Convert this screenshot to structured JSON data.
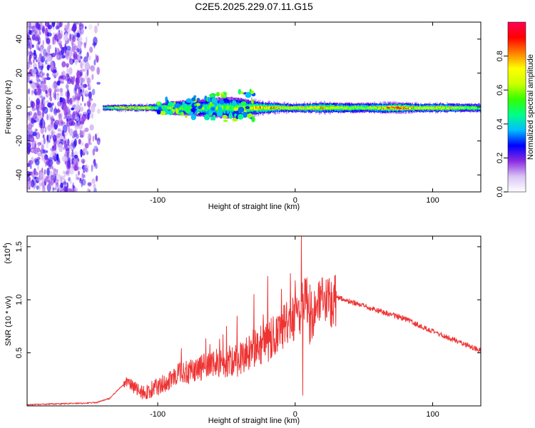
{
  "title": "C2E5.2025.229.07.11.G15",
  "chart_data": [
    {
      "type": "heatmap",
      "xlabel": "Height of straight line (km)",
      "ylabel": "Frequency (Hz)",
      "xlim": [
        -195,
        135
      ],
      "ylim": [
        -50,
        50
      ],
      "x_ticks": [
        -100,
        0,
        100
      ],
      "y_ticks": [
        -40,
        -20,
        0,
        20,
        40
      ],
      "colorbar": {
        "label": "Normalized spectral amplitude",
        "range": [
          0,
          1
        ],
        "ticks": [
          0.0,
          0.2,
          0.4,
          0.6,
          0.8
        ],
        "colors": [
          "#ffffff",
          "#d9c4f5",
          "#8a2be2",
          "#0000ff",
          "#00bfff",
          "#00ff88",
          "#33ff00",
          "#ccff00",
          "#ffff00",
          "#ff8000",
          "#ff0000",
          "#ff0055"
        ]
      },
      "noise_region_x": [
        -195,
        -140
      ],
      "signal_band": [
        {
          "x": -140,
          "amp": 0.45,
          "width_hz": 2.0
        },
        {
          "x": -125,
          "amp": 0.8,
          "width_hz": 2.0
        },
        {
          "x": -110,
          "amp": 0.8,
          "width_hz": 2.0
        },
        {
          "x": -100,
          "amp": 0.5,
          "width_hz": 3.0
        },
        {
          "x": -90,
          "amp": 0.6,
          "width_hz": 5.0
        },
        {
          "x": -70,
          "amp": 0.6,
          "width_hz": 6.0
        },
        {
          "x": -50,
          "amp": 0.55,
          "width_hz": 8.0
        },
        {
          "x": -40,
          "amp": 0.6,
          "width_hz": 7.0
        },
        {
          "x": -25,
          "amp": 0.8,
          "width_hz": 4.0
        },
        {
          "x": -10,
          "amp": 0.75,
          "width_hz": 3.0
        },
        {
          "x": 0,
          "amp": 0.7,
          "width_hz": 3.0
        },
        {
          "x": 20,
          "amp": 0.75,
          "width_hz": 3.5
        },
        {
          "x": 50,
          "amp": 0.6,
          "width_hz": 3.5
        },
        {
          "x": 75,
          "amp": 0.95,
          "width_hz": 3.0
        },
        {
          "x": 90,
          "amp": 0.7,
          "width_hz": 3.0
        },
        {
          "x": 105,
          "amp": 0.75,
          "width_hz": 3.0
        },
        {
          "x": 135,
          "amp": 0.55,
          "width_hz": 3.0
        }
      ]
    },
    {
      "type": "line",
      "xlabel": "Height of straight line (km)",
      "ylabel": "SNR (10 * v/v)",
      "y_multiplier": "(x10",
      "y_multiplier_exp": "4",
      "y_multiplier_close": ")",
      "xlim": [
        -195,
        135
      ],
      "ylim": [
        0,
        1.6
      ],
      "x_ticks": [
        -100,
        0,
        100
      ],
      "y_ticks": [
        0.5,
        1.0,
        1.5
      ],
      "y_tick_labels": [
        "0.5",
        "1.0",
        "1.5"
      ],
      "color": "#ee3333",
      "series": [
        {
          "x": [
            -195,
            -170,
            -145,
            -135,
            -125,
            -122,
            -118,
            -110,
            -100,
            -85,
            -70,
            -55,
            -40,
            -30,
            -20,
            -12,
            -5,
            0,
            4,
            6,
            8,
            10,
            15,
            25,
            32,
            40,
            60,
            80,
            100,
            120,
            135
          ],
          "values": [
            0.01,
            0.02,
            0.03,
            0.07,
            0.2,
            0.24,
            0.18,
            0.12,
            0.18,
            0.3,
            0.35,
            0.4,
            0.45,
            0.55,
            0.6,
            0.7,
            0.78,
            0.82,
            0.9,
            0.98,
            1.05,
            0.8,
            0.92,
            1.0,
            1.02,
            0.98,
            0.9,
            0.82,
            0.7,
            0.6,
            0.52
          ]
        }
      ],
      "spikes": [
        {
          "x": 4.5,
          "values": 1.6
        },
        {
          "x": -20,
          "values": 1.22
        },
        {
          "x": -30,
          "values": 1.05
        },
        {
          "x": -10,
          "values": 1.1
        },
        {
          "x": 0,
          "values": 1.18
        },
        {
          "x": -50,
          "values": 0.75
        },
        {
          "x": -62,
          "values": 0.58
        },
        {
          "x": 5.5,
          "values": 0.1
        }
      ]
    }
  ]
}
